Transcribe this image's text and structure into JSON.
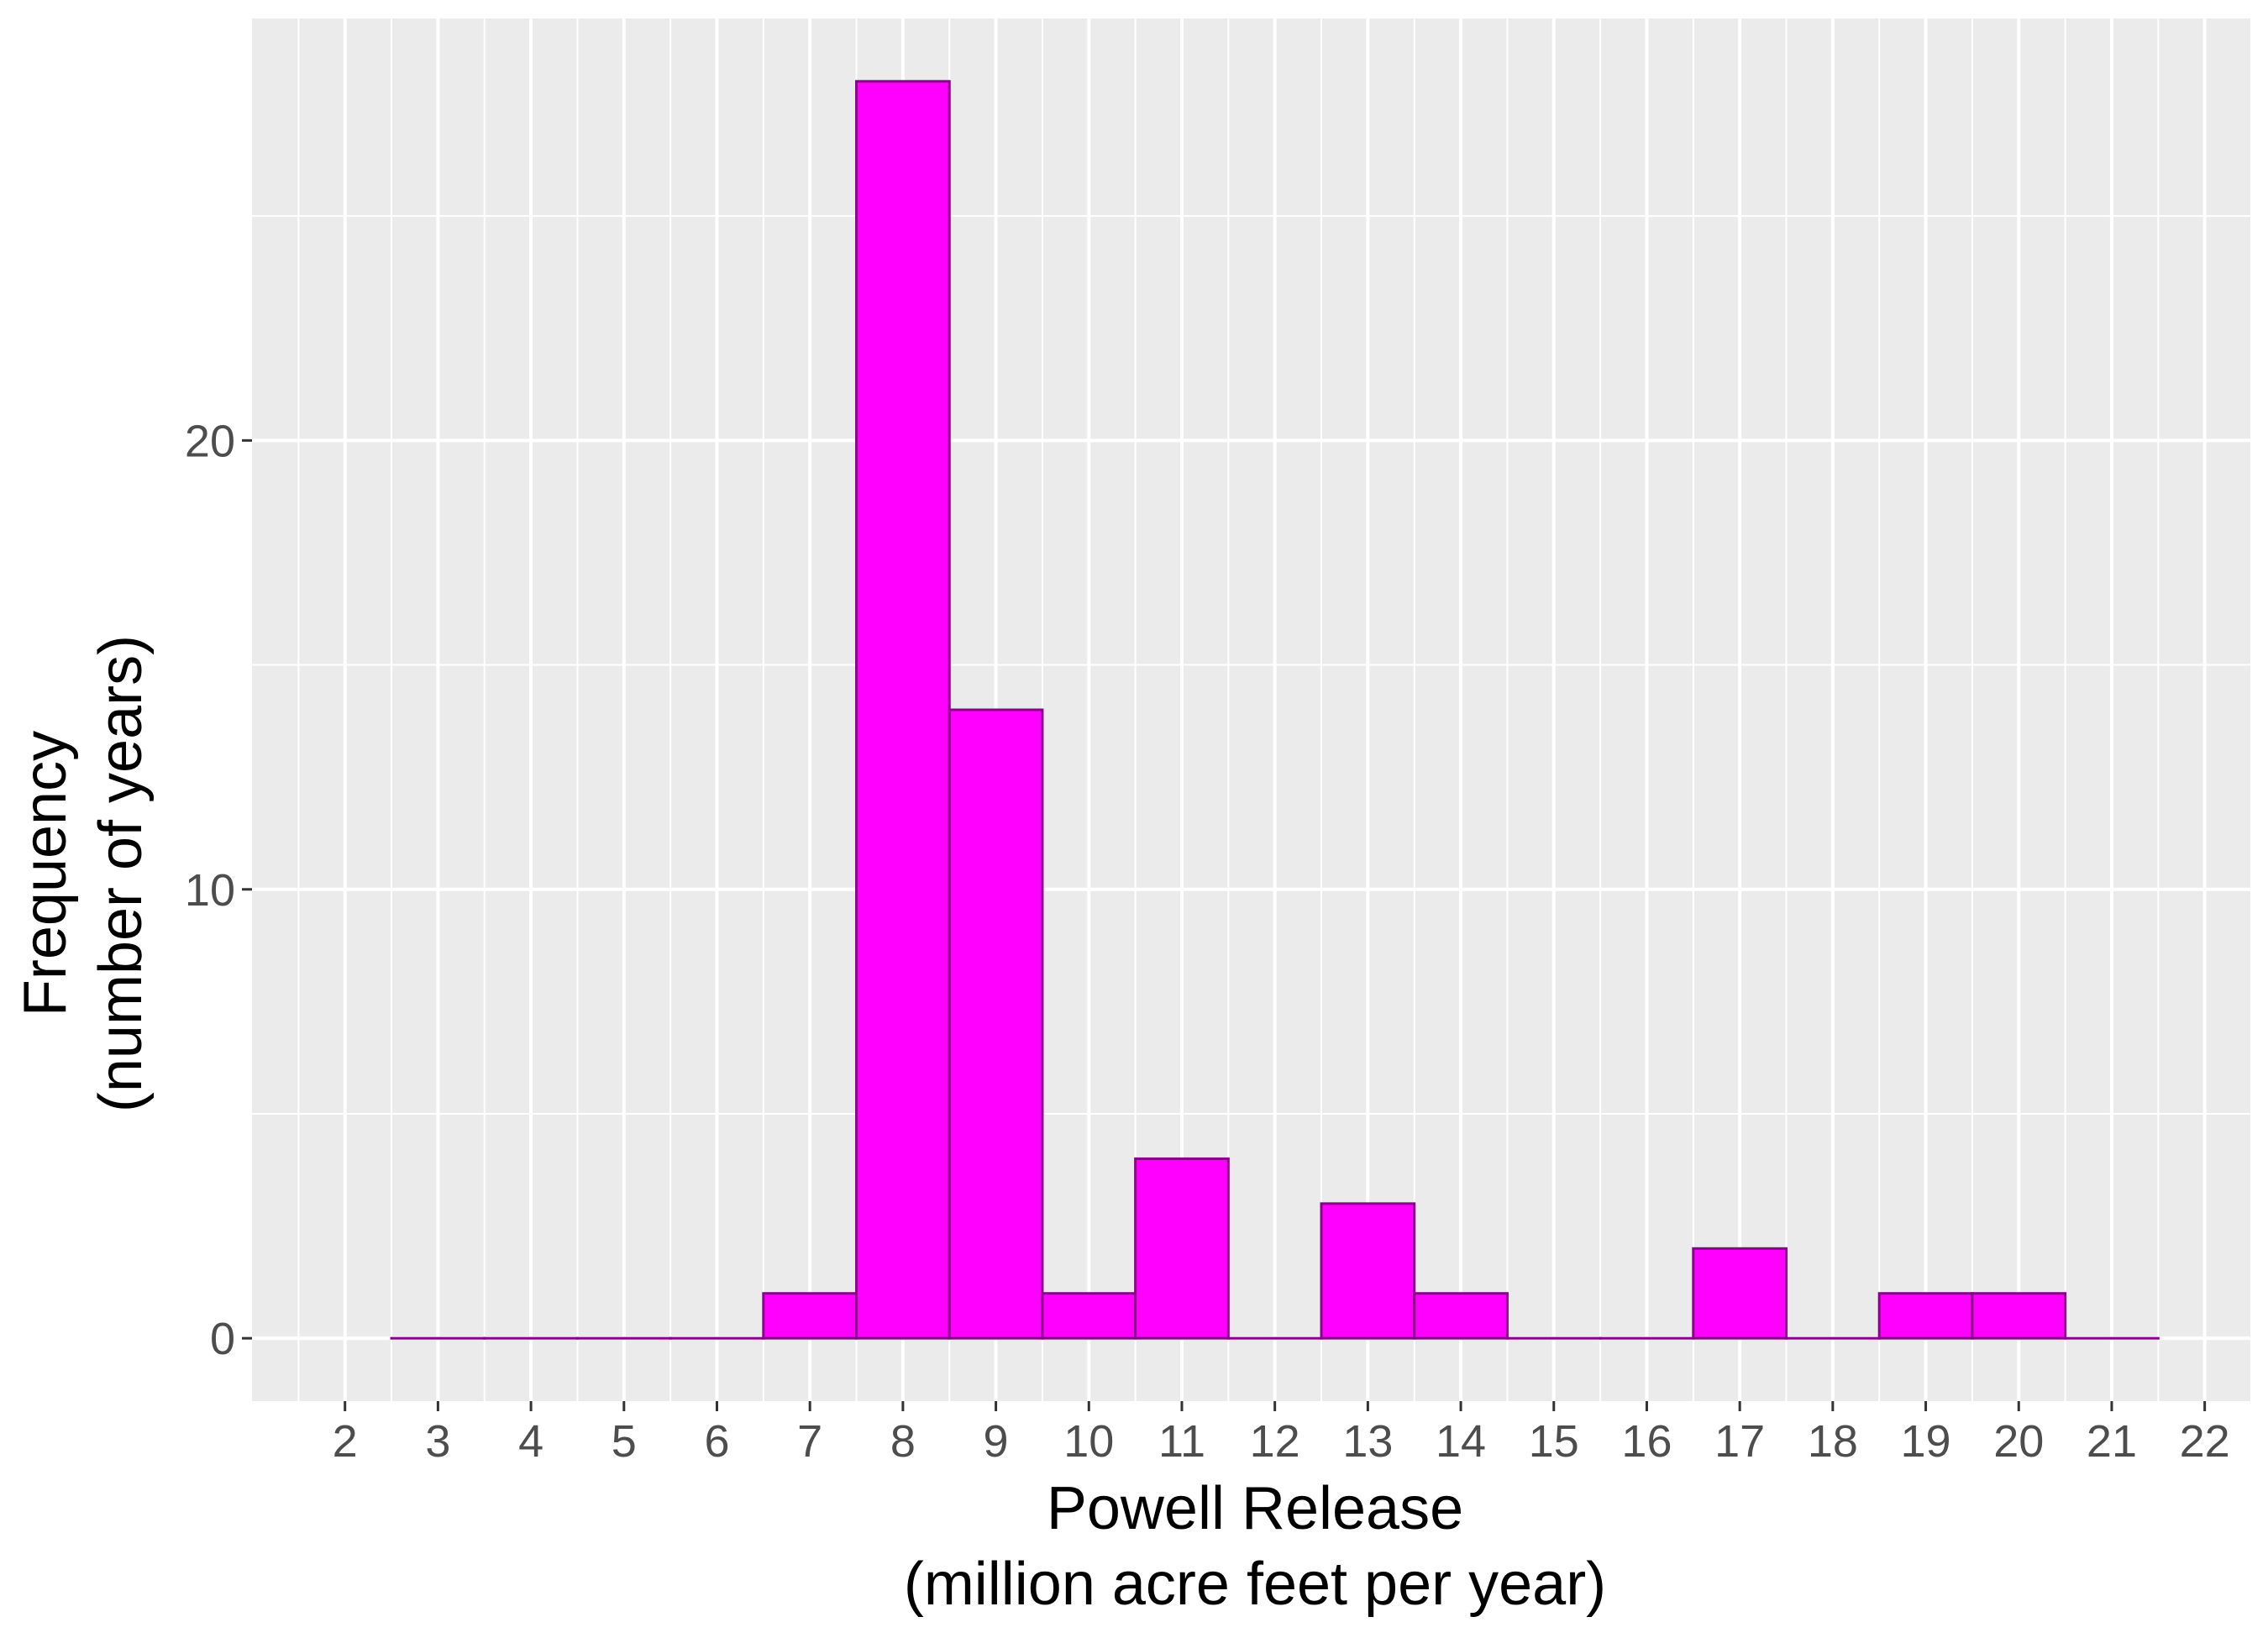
{
  "chart_data": {
    "type": "bar",
    "subtype": "histogram",
    "title": "",
    "xlabel_lines": [
      "Powell Release",
      "(million acre feet per year)"
    ],
    "ylabel_lines": [
      "Frequency",
      "(number of years)"
    ],
    "bin_width": 1,
    "bins": [
      {
        "x": 3,
        "count": 0
      },
      {
        "x": 4,
        "count": 0
      },
      {
        "x": 5,
        "count": 0
      },
      {
        "x": 6,
        "count": 0
      },
      {
        "x": 7,
        "count": 1
      },
      {
        "x": 8,
        "count": 28
      },
      {
        "x": 9,
        "count": 14
      },
      {
        "x": 10,
        "count": 1
      },
      {
        "x": 11,
        "count": 4
      },
      {
        "x": 12,
        "count": 0
      },
      {
        "x": 13,
        "count": 3
      },
      {
        "x": 14,
        "count": 1
      },
      {
        "x": 15,
        "count": 0
      },
      {
        "x": 16,
        "count": 0
      },
      {
        "x": 17,
        "count": 2
      },
      {
        "x": 18,
        "count": 0
      },
      {
        "x": 19,
        "count": 1
      },
      {
        "x": 20,
        "count": 1
      },
      {
        "x": 21,
        "count": 0
      }
    ],
    "xlim": [
      1.0,
      22.5
    ],
    "ylim": [
      -1.4,
      29.4
    ],
    "x_ticks": [
      2,
      3,
      4,
      5,
      6,
      7,
      8,
      9,
      10,
      11,
      12,
      13,
      14,
      15,
      16,
      17,
      18,
      19,
      20,
      21,
      22
    ],
    "y_ticks": [
      0,
      10,
      20
    ],
    "y_minor_ticks": [
      5,
      15,
      25
    ],
    "grid": true,
    "legend": "none",
    "colors": {
      "bar_fill": "#ff00ff",
      "bar_stroke": "#8b008b",
      "panel_bg": "#ebebeb",
      "grid": "#ffffff"
    }
  }
}
